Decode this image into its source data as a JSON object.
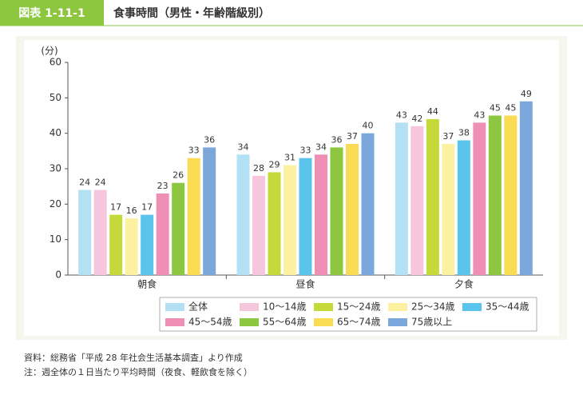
{
  "chart_data": {
    "type": "bar",
    "figure_label": "図表 1-11-1",
    "title": "食事時間（男性・年齢階級別）",
    "y_axis_label": "(分)",
    "categories": [
      "朝食",
      "昼食",
      "夕食"
    ],
    "series": [
      {
        "name": "全体",
        "color": "#b3e0f2",
        "values": [
          24,
          34,
          43
        ]
      },
      {
        "name": "10～14歳",
        "color": "#f6c6dc",
        "values": [
          24,
          28,
          42
        ]
      },
      {
        "name": "15～24歳",
        "color": "#c6d93b",
        "values": [
          17,
          29,
          44
        ]
      },
      {
        "name": "25～34歳",
        "color": "#fbf1a0",
        "values": [
          16,
          31,
          37
        ]
      },
      {
        "name": "35～44歳",
        "color": "#5bc4ec",
        "values": [
          17,
          33,
          38
        ]
      },
      {
        "name": "45～54歳",
        "color": "#ef8fb6",
        "values": [
          23,
          34,
          43
        ]
      },
      {
        "name": "55～64歳",
        "color": "#8dc63f",
        "values": [
          26,
          36,
          45
        ]
      },
      {
        "name": "65～74歳",
        "color": "#f9dc53",
        "values": [
          33,
          37,
          45
        ]
      },
      {
        "name": "75歳以上",
        "color": "#7ba7db",
        "values": [
          36,
          40,
          49
        ]
      }
    ],
    "ylim": [
      0,
      60
    ],
    "yticks": [
      0,
      10,
      20,
      30,
      40,
      50,
      60
    ],
    "notes": [
      "資料：総務省「平成 28 年社会生活基本調査」より作成",
      "注：週全体の１日当たり平均時間（夜食、軽飲食を除く）"
    ]
  }
}
